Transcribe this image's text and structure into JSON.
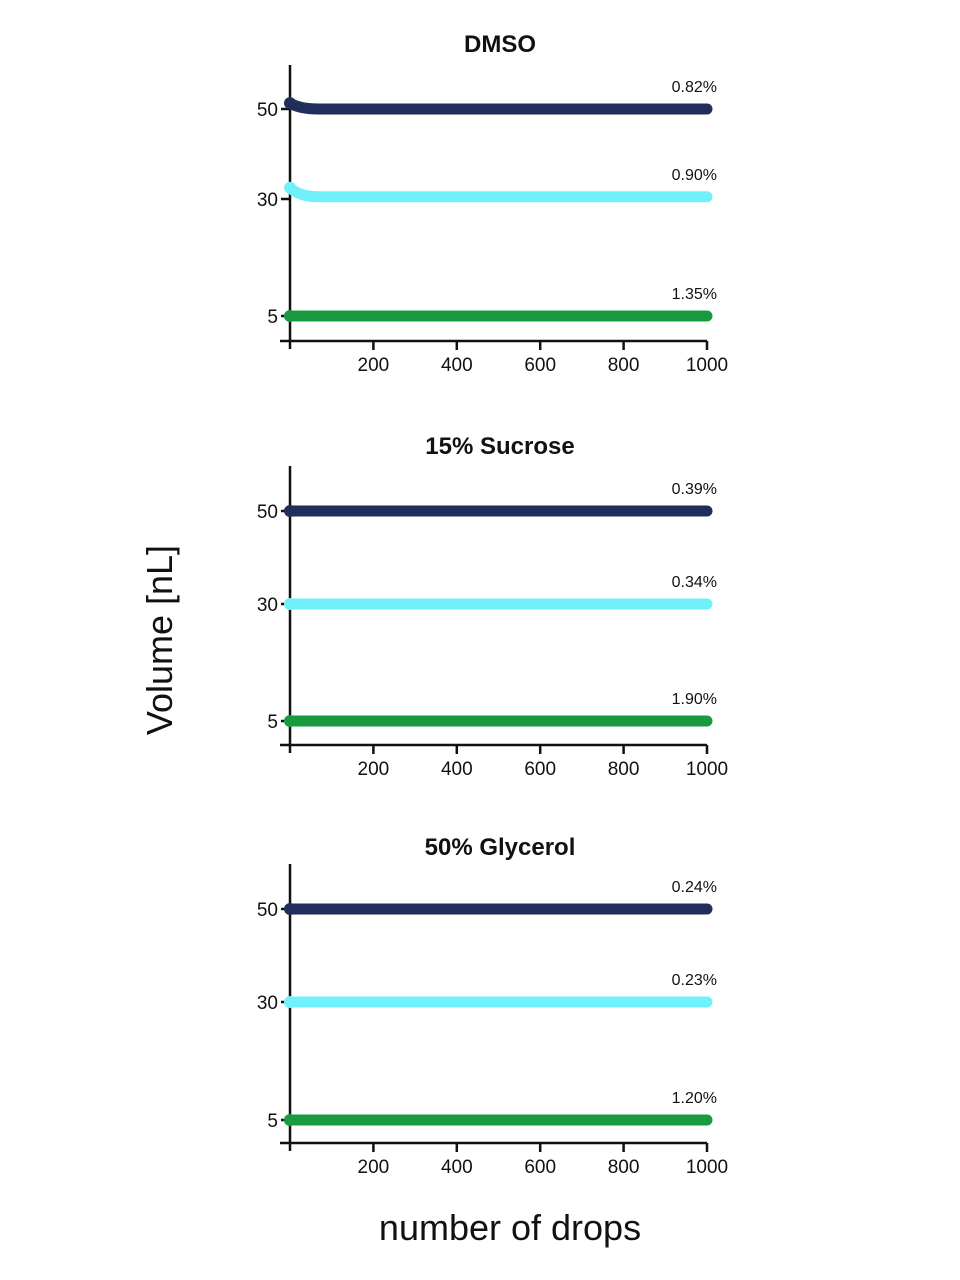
{
  "figure": {
    "ylabel": "Volume [nL]",
    "xlabel": "number of drops"
  },
  "chart_data": [
    {
      "type": "scatter",
      "title": "DMSO",
      "xlabel": "number of drops",
      "ylabel": "Volume [nL]",
      "xlim": [
        0,
        1000
      ],
      "xticks": [
        200,
        400,
        600,
        800,
        1000
      ],
      "yticks": [
        5,
        30,
        50
      ],
      "series": [
        {
          "color": "#1f2e5a",
          "x_start": 0,
          "x_end": 1000,
          "value": 50,
          "start_value": 51.3,
          "annotation": "0.82%"
        },
        {
          "color": "#70f0f8",
          "x_start": 0,
          "x_end": 1000,
          "value": 30.5,
          "start_value": 32.5,
          "annotation": "0.90%"
        },
        {
          "color": "#1a9a40",
          "x_start": 0,
          "x_end": 1000,
          "value": 5,
          "start_value": 5,
          "annotation": "1.35%"
        }
      ]
    },
    {
      "type": "scatter",
      "title": "15% Sucrose",
      "xlabel": "number of drops",
      "ylabel": "Volume [nL]",
      "xlim": [
        0,
        1000
      ],
      "xticks": [
        200,
        400,
        600,
        800,
        1000
      ],
      "yticks": [
        5,
        30,
        50
      ],
      "series": [
        {
          "color": "#1f2e5a",
          "x_start": 0,
          "x_end": 1000,
          "value": 50,
          "start_value": 50,
          "annotation": "0.39%"
        },
        {
          "color": "#70f0f8",
          "x_start": 0,
          "x_end": 1000,
          "value": 30,
          "start_value": 30,
          "annotation": "0.34%"
        },
        {
          "color": "#1a9a40",
          "x_start": 0,
          "x_end": 1000,
          "value": 5,
          "start_value": 5,
          "annotation": "1.90%"
        }
      ]
    },
    {
      "type": "scatter",
      "title": "50% Glycerol",
      "xlabel": "number of drops",
      "ylabel": "Volume [nL]",
      "xlim": [
        0,
        1000
      ],
      "xticks": [
        200,
        400,
        600,
        800,
        1000
      ],
      "yticks": [
        5,
        30,
        50
      ],
      "series": [
        {
          "color": "#1f2e5a",
          "x_start": 0,
          "x_end": 1000,
          "value": 50,
          "start_value": 50,
          "annotation": "0.24%"
        },
        {
          "color": "#70f0f8",
          "x_start": 0,
          "x_end": 1000,
          "value": 30,
          "start_value": 30,
          "annotation": "0.23%"
        },
        {
          "color": "#1a9a40",
          "x_start": 0,
          "x_end": 1000,
          "value": 5,
          "start_value": 5,
          "annotation": "1.20%"
        }
      ]
    }
  ]
}
